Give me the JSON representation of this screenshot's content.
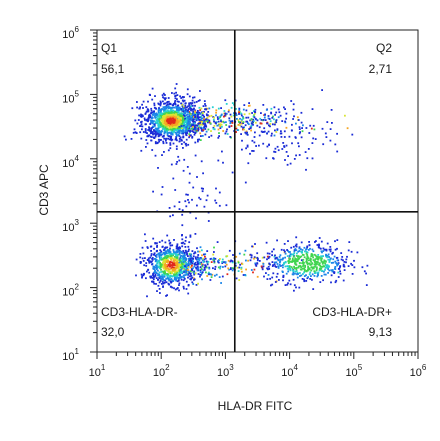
{
  "chart_data": {
    "type": "scatter",
    "xlabel": "HLA-DR FITC",
    "ylabel": "CD3 APC",
    "x_scale": "log",
    "y_scale": "log",
    "xlim": [
      10,
      1000000
    ],
    "ylim": [
      10,
      1000000
    ],
    "x_ticks": [
      {
        "base": "10",
        "exp": "1",
        "value": 10
      },
      {
        "base": "10",
        "exp": "2",
        "value": 100
      },
      {
        "base": "10",
        "exp": "3",
        "value": 1000
      },
      {
        "base": "10",
        "exp": "4",
        "value": 10000
      },
      {
        "base": "10",
        "exp": "5",
        "value": 100000
      },
      {
        "base": "10",
        "exp": "6",
        "value": 1000000
      }
    ],
    "y_ticks": [
      {
        "base": "10",
        "exp": "1",
        "value": 10
      },
      {
        "base": "10",
        "exp": "2",
        "value": 100
      },
      {
        "base": "10",
        "exp": "3",
        "value": 1000
      },
      {
        "base": "10",
        "exp": "4",
        "value": 10000
      },
      {
        "base": "10",
        "exp": "5",
        "value": 100000
      },
      {
        "base": "10",
        "exp": "6",
        "value": 1000000
      }
    ],
    "gate": {
      "x": 1400,
      "y": 1500
    },
    "quadrants": [
      {
        "name": "Q1",
        "value": "56,1",
        "position": "top-left"
      },
      {
        "name": "Q2",
        "value": "2,71",
        "position": "top-right"
      },
      {
        "name": "CD3-HLA-DR-",
        "value": "32,0",
        "position": "bottom-left"
      },
      {
        "name": "CD3-HLA-DR+",
        "value": "9,13",
        "position": "bottom-right"
      }
    ],
    "populations": [
      {
        "label": "CD3+ HLA-DR-",
        "center": [
          140,
          40000
        ],
        "spread": [
          0.22,
          0.16
        ],
        "count": 1600,
        "tail": "right"
      },
      {
        "label": "CD3- HLA-DR-",
        "center": [
          140,
          230
        ],
        "spread": [
          0.2,
          0.17
        ],
        "count": 1050,
        "tail": "right"
      },
      {
        "label": "CD3- HLA-DR+",
        "center": [
          18000,
          250
        ],
        "spread": [
          0.33,
          0.16
        ],
        "count": 520,
        "tail": "none"
      },
      {
        "label": "CD3+ HLA-DR+",
        "center": [
          6000,
          25000
        ],
        "spread": [
          0.45,
          0.25
        ],
        "count": 150,
        "tail": "none"
      },
      {
        "label": "CD3+ HLA-DR-",
        "center": [
          240,
          3000
        ],
        "spread": [
          0.25,
          0.3
        ],
        "count": 60,
        "tail": "none"
      }
    ],
    "density_colors": [
      "#1a2bd6",
      "#1b85e8",
      "#28d0d0",
      "#3fd44f",
      "#d8e534",
      "#f5a623",
      "#e0291c"
    ]
  }
}
